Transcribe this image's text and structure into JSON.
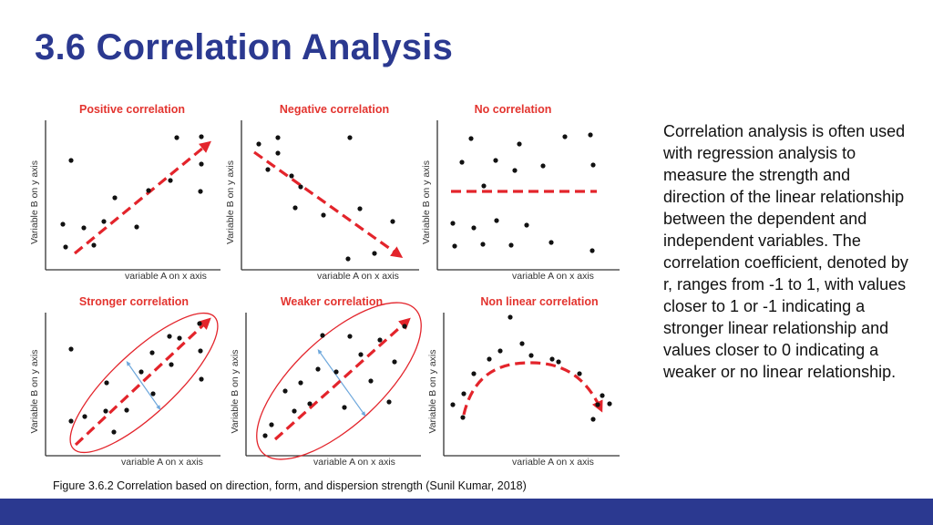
{
  "title": "3.6 Correlation Analysis",
  "body_text": "Correlation analysis is often used with regression analysis to measure the strength and direction of the linear relationship between the dependent and independent variables. The correlation coefficient, denoted by r, ranges from -1 to 1, with values closer to 1 or -1 indicating a stronger linear relationship and values closer to 0 indicating a weaker or no linear relationship.",
  "caption": "Figure 3.6.2 Correlation based on direction, form, and dispersion strength (Sunil Kumar, 2018)",
  "colors": {
    "title": "#2b3990",
    "panel_title": "#e3342f",
    "trend": "#e3242b",
    "point": "#111111",
    "spread_arrow": "#6fa8dc",
    "footer": "#2b3990"
  },
  "panels": [
    {
      "title": "Positive correlation",
      "x_label": "variable A on x axis",
      "y_label": "Variable B on y axis"
    },
    {
      "title": "Negative correlation",
      "x_label": "variable A on x axis",
      "y_label": "Variable B on y axis"
    },
    {
      "title": "No correlation",
      "x_label": "variable A on x axis",
      "y_label": "Variable B on y axis"
    },
    {
      "title": "Stronger correlation",
      "x_label": "variable A on x axis",
      "y_label": "Variable B on y axis"
    },
    {
      "title": "Weaker correlation",
      "x_label": "variable A on x axis",
      "y_label": "Variable B on y axis"
    },
    {
      "title": "Non linear correlation",
      "x_label": "variable A on x axis",
      "y_label": "Variable B on y axis"
    }
  ]
}
